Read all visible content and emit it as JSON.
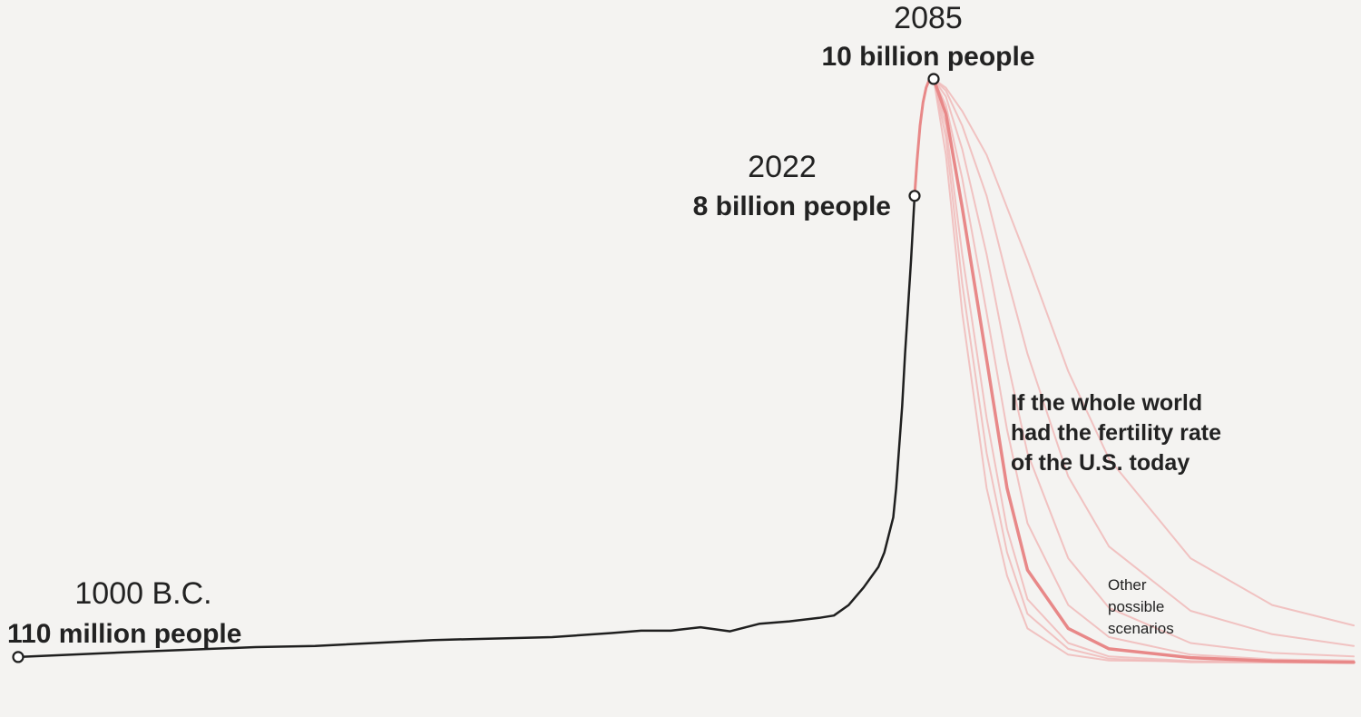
{
  "chart_data": {
    "type": "line",
    "title": "",
    "xlabel": "",
    "ylabel": "",
    "grid": false,
    "annotations": [
      {
        "year_text": "1000 B.C.",
        "pop_text": "110 million people",
        "x": -1000,
        "y": 0.11
      },
      {
        "year_text": "2022",
        "pop_text": "8 billion people",
        "x": 2022,
        "y": 8.0
      },
      {
        "year_text": "2085",
        "pop_text": "10 billion people",
        "x": 2085,
        "y": 10.0
      }
    ],
    "scenario_label_lines": [
      "If the whole world",
      "had the fertility rate",
      "of the U.S. today"
    ],
    "other_label_lines": [
      "Other",
      "possible",
      "scenarios"
    ],
    "colors": {
      "historical": "#1f1f1f",
      "projection": "#e88888",
      "scenarios": "#f0b8b8",
      "background": "#f4f3f1"
    },
    "series": [
      {
        "key": "historical",
        "values": [
          [
            -1000,
            0.11
          ],
          [
            -600,
            0.2
          ],
          [
            -200,
            0.28
          ],
          [
            1,
            0.3
          ],
          [
            400,
            0.4
          ],
          [
            800,
            0.45
          ],
          [
            1000,
            0.52
          ],
          [
            1100,
            0.56
          ],
          [
            1200,
            0.56
          ],
          [
            1300,
            0.62
          ],
          [
            1400,
            0.55
          ],
          [
            1500,
            0.68
          ],
          [
            1600,
            0.72
          ],
          [
            1700,
            0.78
          ],
          [
            1750,
            0.82
          ],
          [
            1800,
            1.0
          ],
          [
            1850,
            1.3
          ],
          [
            1900,
            1.65
          ],
          [
            1920,
            1.9
          ],
          [
            1940,
            2.3
          ],
          [
            1950,
            2.5
          ],
          [
            1960,
            3.0
          ],
          [
            1970,
            3.7
          ],
          [
            1980,
            4.4
          ],
          [
            1990,
            5.3
          ],
          [
            2000,
            6.1
          ],
          [
            2010,
            6.9
          ],
          [
            2022,
            8.0
          ]
        ]
      },
      {
        "key": "projection",
        "values": [
          [
            2022,
            8.0
          ],
          [
            2030,
            8.6
          ],
          [
            2040,
            9.2
          ],
          [
            2050,
            9.6
          ],
          [
            2060,
            9.85
          ],
          [
            2070,
            9.98
          ],
          [
            2085,
            10.0
          ]
        ]
      },
      {
        "key": "us_fertility",
        "values": [
          [
            2085,
            10.0
          ],
          [
            2100,
            9.4
          ],
          [
            2120,
            7.8
          ],
          [
            2150,
            5.2
          ],
          [
            2175,
            3.0
          ],
          [
            2200,
            1.6
          ],
          [
            2250,
            0.6
          ],
          [
            2300,
            0.25
          ],
          [
            2400,
            0.1
          ],
          [
            2500,
            0.04
          ],
          [
            2600,
            0.02
          ]
        ]
      },
      {
        "key": "other",
        "values": [
          [
            2085,
            10.0
          ],
          [
            2100,
            9.2
          ],
          [
            2120,
            7.0
          ],
          [
            2150,
            4.2
          ],
          [
            2175,
            2.3
          ],
          [
            2200,
            1.1
          ],
          [
            2250,
            0.35
          ],
          [
            2300,
            0.12
          ],
          [
            2400,
            0.04
          ],
          [
            2600,
            0.01
          ]
        ]
      },
      {
        "key": "other",
        "values": [
          [
            2085,
            10.0
          ],
          [
            2100,
            9.0
          ],
          [
            2120,
            6.5
          ],
          [
            2150,
            3.6
          ],
          [
            2175,
            1.9
          ],
          [
            2200,
            0.85
          ],
          [
            2250,
            0.25
          ],
          [
            2300,
            0.08
          ],
          [
            2400,
            0.02
          ],
          [
            2600,
            0.01
          ]
        ]
      },
      {
        "key": "other",
        "values": [
          [
            2085,
            10.0
          ],
          [
            2100,
            8.7
          ],
          [
            2120,
            6.0
          ],
          [
            2150,
            3.0
          ],
          [
            2175,
            1.5
          ],
          [
            2200,
            0.6
          ],
          [
            2250,
            0.15
          ],
          [
            2300,
            0.05
          ],
          [
            2600,
            0.01
          ]
        ]
      },
      {
        "key": "other",
        "values": [
          [
            2085,
            10.0
          ],
          [
            2100,
            9.55
          ],
          [
            2120,
            8.3
          ],
          [
            2150,
            6.0
          ],
          [
            2175,
            4.0
          ],
          [
            2200,
            2.4
          ],
          [
            2250,
            1.0
          ],
          [
            2300,
            0.45
          ],
          [
            2400,
            0.15
          ],
          [
            2500,
            0.07
          ],
          [
            2600,
            0.05
          ]
        ]
      },
      {
        "key": "other",
        "values": [
          [
            2085,
            10.0
          ],
          [
            2100,
            9.7
          ],
          [
            2120,
            8.8
          ],
          [
            2150,
            7.0
          ],
          [
            2175,
            5.2
          ],
          [
            2200,
            3.6
          ],
          [
            2250,
            1.8
          ],
          [
            2300,
            0.95
          ],
          [
            2400,
            0.35
          ],
          [
            2500,
            0.18
          ],
          [
            2600,
            0.12
          ]
        ]
      },
      {
        "key": "other",
        "values": [
          [
            2085,
            10.0
          ],
          [
            2100,
            9.8
          ],
          [
            2120,
            9.2
          ],
          [
            2150,
            8.0
          ],
          [
            2175,
            6.6
          ],
          [
            2200,
            5.3
          ],
          [
            2250,
            3.2
          ],
          [
            2300,
            2.0
          ],
          [
            2400,
            0.9
          ],
          [
            2500,
            0.5
          ],
          [
            2600,
            0.3
          ]
        ]
      },
      {
        "key": "other",
        "values": [
          [
            2085,
            10.0
          ],
          [
            2100,
            9.85
          ],
          [
            2120,
            9.45
          ],
          [
            2150,
            8.7
          ],
          [
            2175,
            7.8
          ],
          [
            2200,
            6.9
          ],
          [
            2250,
            5.0
          ],
          [
            2300,
            3.5
          ],
          [
            2400,
            1.8
          ],
          [
            2500,
            1.0
          ],
          [
            2600,
            0.65
          ]
        ]
      }
    ]
  }
}
